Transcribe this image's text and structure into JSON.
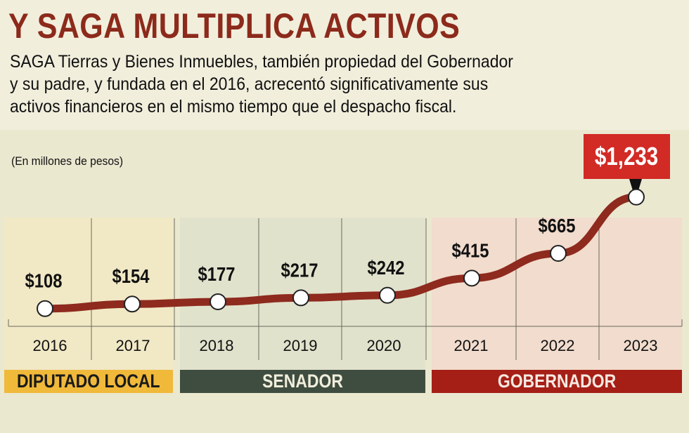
{
  "header": {
    "title": "Y SAGA MULTIPLICA ACTIVOS",
    "subtitle_lines": [
      "SAGA Tierras y Bienes Inmuebles, también propiedad del Gobernador",
      "y su padre, y fundada en el 2016, acrecentó significativamente sus",
      "activos financieros en el mismo tiempo que el despacho fiscal."
    ]
  },
  "chart_data": {
    "type": "line",
    "title": "Y SAGA MULTIPLICA ACTIVOS",
    "ylabel": "(En millones de pesos)",
    "xlabel": "",
    "categories": [
      "2016",
      "2017",
      "2018",
      "2019",
      "2020",
      "2021",
      "2022",
      "2023"
    ],
    "values": [
      108,
      154,
      177,
      217,
      242,
      415,
      665,
      1233
    ],
    "labels": [
      "$108",
      "$154",
      "$177",
      "$217",
      "$242",
      "$415",
      "$665",
      "$1,233"
    ],
    "highlight_index": 7,
    "grid": "vertical",
    "periods": [
      {
        "label": "DIPUTADO LOCAL",
        "years": [
          "2016",
          "2017"
        ],
        "color": "#f0b93a",
        "text_color": "#1a1a1a"
      },
      {
        "label": "SENADOR",
        "years": [
          "2018",
          "2019",
          "2020"
        ],
        "color": "#3f4d40",
        "text_color": "#f1eedc"
      },
      {
        "label": "GOBERNADOR",
        "years": [
          "2021",
          "2022",
          "2023"
        ],
        "color": "#a51f16",
        "text_color": "#f6e9e1"
      }
    ]
  },
  "colors": {
    "line": "#8e2a1e",
    "title": "#8c2a1b",
    "highlight": "#d22a25"
  }
}
